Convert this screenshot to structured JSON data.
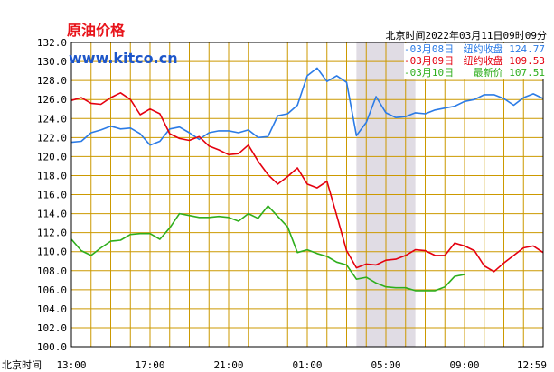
{
  "chart_data": {
    "type": "line",
    "title": "原油价格",
    "watermark": "www.kitco.cn",
    "timestamp": "北京时间2022年03月11日09时09分",
    "xlabel": "北京时间",
    "ylim": [
      100,
      132
    ],
    "ytick_step": 2,
    "yticks": [
      "132.0",
      "130.0",
      "128.0",
      "126.0",
      "124.0",
      "122.0",
      "120.0",
      "118.0",
      "116.0",
      "114.0",
      "112.0",
      "110.0",
      "108.0",
      "106.0",
      "104.0",
      "102.0",
      "100.0"
    ],
    "xticks": [
      "13:00",
      "17:00",
      "21:00",
      "01:00",
      "05:00",
      "09:00",
      "12:59"
    ],
    "x_range": [
      0,
      24
    ],
    "shaded_region": [
      14.5,
      17.5
    ],
    "grid": true,
    "colors": {
      "grid": "#cc9900",
      "shade": "#e0dce4",
      "frame": "#000000"
    },
    "series": [
      {
        "name": "03月08日",
        "legend_label": "纽约收盘",
        "legend_value": "124.77",
        "color": "#2b7be6",
        "x": [
          0,
          0.5,
          1,
          1.5,
          2,
          2.5,
          3,
          3.5,
          4,
          4.5,
          5,
          5.5,
          6,
          6.5,
          7,
          7.5,
          8,
          8.5,
          9,
          9.5,
          10,
          10.5,
          11,
          11.5,
          12,
          12.5,
          13,
          13.5,
          14,
          14.5,
          15,
          15.5,
          16,
          16.5,
          17,
          17.5,
          18,
          18.5,
          19,
          19.5,
          20,
          20.5,
          21,
          21.5,
          22,
          22.5,
          23,
          23.5,
          24
        ],
        "y": [
          121.5,
          121.6,
          122.5,
          122.8,
          123.2,
          122.9,
          123,
          122.4,
          121.2,
          121.6,
          122.9,
          123.1,
          122.5,
          121.8,
          122.5,
          122.7,
          122.7,
          122.5,
          122.8,
          122,
          122.1,
          124.3,
          124.5,
          125.4,
          128.5,
          129.3,
          127.9,
          128.5,
          127.8,
          122.2,
          123.6,
          126.3,
          124.6,
          124.1,
          124.2,
          124.6,
          124.5,
          124.9,
          125.1,
          125.3,
          125.8,
          126,
          126.5,
          126.5,
          126.1,
          125.4,
          126.2,
          126.6,
          126.1
        ]
      },
      {
        "name": "03月09日",
        "legend_label": "纽约收盘",
        "legend_value": "109.53",
        "color": "#e4000f",
        "x": [
          0,
          0.5,
          1,
          1.5,
          2,
          2.5,
          3,
          3.5,
          4,
          4.5,
          5,
          5.5,
          6,
          6.5,
          7,
          7.5,
          8,
          8.5,
          9,
          9.5,
          10,
          10.5,
          11,
          11.5,
          12,
          12.5,
          13,
          13.5,
          14,
          14.5,
          15,
          15.5,
          16,
          16.5,
          17,
          17.5,
          18,
          18.5,
          19,
          19.5,
          20,
          20.5,
          21,
          21.5,
          22,
          22.5,
          23,
          23.5,
          24
        ],
        "y": [
          125.9,
          126.2,
          125.6,
          125.5,
          126.2,
          126.7,
          126,
          124.4,
          125,
          124.5,
          122.4,
          121.9,
          121.7,
          122.1,
          121.1,
          120.7,
          120.2,
          120.3,
          121.2,
          119.5,
          118.1,
          117.1,
          117.9,
          118.8,
          117.1,
          116.7,
          117.4,
          113.8,
          110.1,
          108.3,
          108.7,
          108.6,
          109.1,
          109.2,
          109.6,
          110.2,
          110.1,
          109.6,
          109.6,
          110.9,
          110.6,
          110.1,
          108.5,
          107.9,
          108.8,
          109.6,
          110.4,
          110.6,
          109.9
        ]
      },
      {
        "name": "03月10日",
        "legend_label": "最新价",
        "legend_value": "107.51",
        "color": "#2fae1d",
        "x": [
          0,
          0.5,
          1,
          1.5,
          2,
          2.5,
          3,
          3.5,
          4,
          4.5,
          5,
          5.5,
          6,
          6.5,
          7,
          7.5,
          8,
          8.5,
          9,
          9.5,
          10,
          10.5,
          11,
          11.5,
          12,
          12.5,
          13,
          13.5,
          14,
          14.5,
          15,
          15.5,
          16,
          16.5,
          17,
          17.5,
          18,
          18.5,
          19,
          19.5,
          20
        ],
        "y": [
          111.3,
          110.1,
          109.6,
          110.4,
          111.1,
          111.2,
          111.8,
          111.9,
          111.9,
          111.3,
          112.5,
          114,
          113.8,
          113.6,
          113.6,
          113.7,
          113.6,
          113.2,
          114,
          113.5,
          114.8,
          113.7,
          112.6,
          109.9,
          110.2,
          109.8,
          109.5,
          108.9,
          108.6,
          107.1,
          107.3,
          106.7,
          106.3,
          106.2,
          106.2,
          105.9,
          105.9,
          105.9,
          106.3,
          107.4,
          107.6
        ]
      }
    ]
  }
}
